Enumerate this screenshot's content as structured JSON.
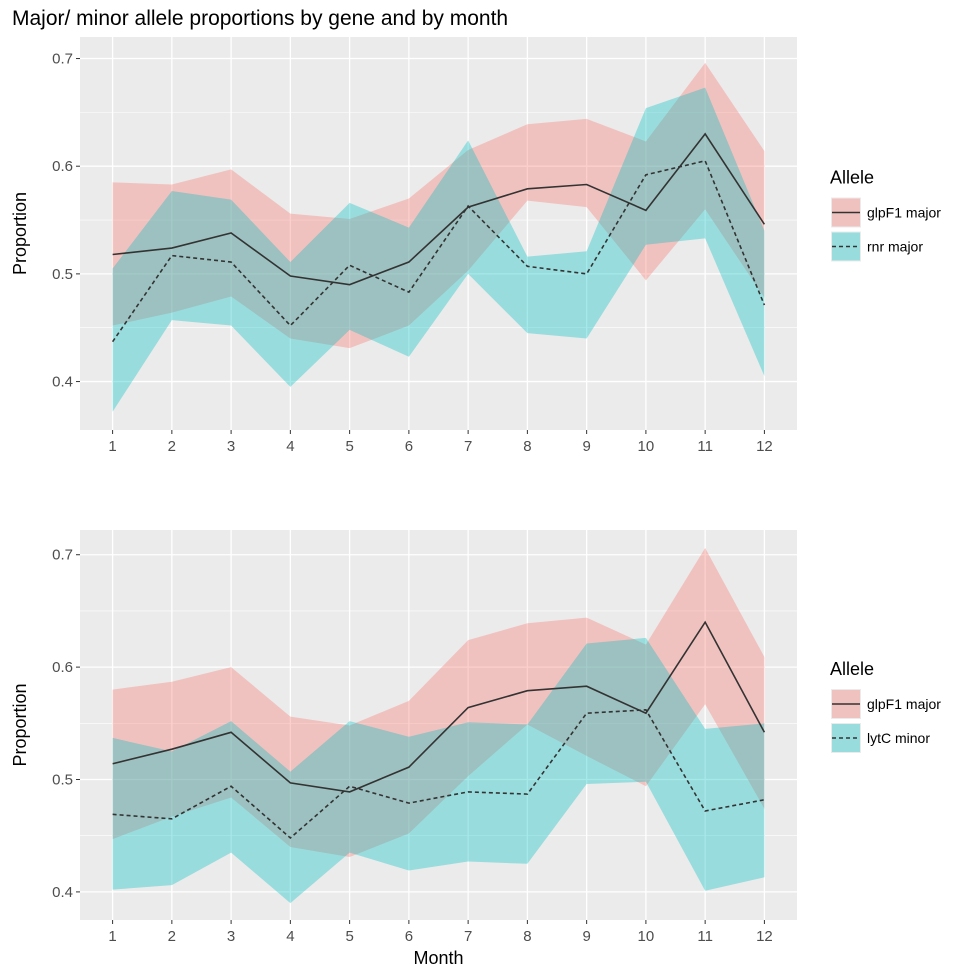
{
  "chart_data": [
    {
      "type": "line",
      "title": "Major/ minor allele proportions by gene and by month",
      "ylabel": "Proportion",
      "x": [
        1,
        2,
        3,
        4,
        5,
        6,
        7,
        8,
        9,
        10,
        11,
        12
      ],
      "xlim": [
        0.45,
        12.55
      ],
      "xticks": [
        1,
        2,
        3,
        4,
        5,
        6,
        7,
        8,
        9,
        10,
        11,
        12
      ],
      "ylim": [
        0.355,
        0.72
      ],
      "yticks": [
        0.4,
        0.5,
        0.6,
        0.7
      ],
      "grid": true,
      "legend_title": "Allele",
      "series": [
        {
          "name": "glpF1 major",
          "color": "#333333",
          "fill": "#f8766d",
          "linestyle": "solid",
          "values": [
            0.518,
            0.524,
            0.538,
            0.498,
            0.49,
            0.511,
            0.562,
            0.579,
            0.583,
            0.559,
            0.63,
            0.546
          ],
          "lower": [
            0.452,
            0.464,
            0.479,
            0.44,
            0.431,
            0.452,
            0.503,
            0.568,
            0.562,
            0.494,
            0.56,
            0.478
          ],
          "upper": [
            0.585,
            0.583,
            0.597,
            0.556,
            0.551,
            0.57,
            0.615,
            0.639,
            0.644,
            0.623,
            0.696,
            0.614
          ]
        },
        {
          "name": "rnr major",
          "color": "#333333",
          "fill": "#00bfc4",
          "linestyle": "dashed",
          "values": [
            0.437,
            0.517,
            0.511,
            0.452,
            0.508,
            0.483,
            0.563,
            0.507,
            0.5,
            0.592,
            0.605,
            0.471
          ],
          "lower": [
            0.372,
            0.457,
            0.452,
            0.395,
            0.448,
            0.423,
            0.5,
            0.445,
            0.44,
            0.527,
            0.533,
            0.405
          ],
          "upper": [
            0.505,
            0.577,
            0.569,
            0.511,
            0.566,
            0.543,
            0.624,
            0.516,
            0.521,
            0.654,
            0.673,
            0.54
          ]
        }
      ]
    },
    {
      "type": "line",
      "ylabel": "Proportion",
      "xlabel": "Month",
      "x": [
        1,
        2,
        3,
        4,
        5,
        6,
        7,
        8,
        9,
        10,
        11,
        12
      ],
      "xlim": [
        0.45,
        12.55
      ],
      "xticks": [
        1,
        2,
        3,
        4,
        5,
        6,
        7,
        8,
        9,
        10,
        11,
        12
      ],
      "ylim": [
        0.375,
        0.722
      ],
      "yticks": [
        0.4,
        0.5,
        0.6,
        0.7
      ],
      "grid": true,
      "legend_title": "Allele",
      "series": [
        {
          "name": "glpF1 major",
          "color": "#333333",
          "fill": "#f8766d",
          "linestyle": "solid",
          "values": [
            0.514,
            0.527,
            0.542,
            0.497,
            0.489,
            0.511,
            0.564,
            0.579,
            0.583,
            0.559,
            0.64,
            0.542
          ],
          "lower": [
            0.447,
            0.467,
            0.484,
            0.44,
            0.431,
            0.452,
            0.503,
            0.549,
            0.521,
            0.494,
            0.567,
            0.474
          ],
          "upper": [
            0.58,
            0.587,
            0.6,
            0.556,
            0.548,
            0.57,
            0.624,
            0.639,
            0.644,
            0.62,
            0.706,
            0.609
          ]
        },
        {
          "name": "lytC minor",
          "color": "#333333",
          "fill": "#00bfc4",
          "linestyle": "dashed",
          "values": [
            0.469,
            0.465,
            0.494,
            0.448,
            0.494,
            0.479,
            0.489,
            0.487,
            0.559,
            0.562,
            0.472,
            0.482
          ],
          "lower": [
            0.402,
            0.406,
            0.435,
            0.39,
            0.435,
            0.419,
            0.427,
            0.425,
            0.496,
            0.498,
            0.401,
            0.413
          ],
          "upper": [
            0.537,
            0.525,
            0.552,
            0.507,
            0.552,
            0.538,
            0.551,
            0.549,
            0.621,
            0.626,
            0.545,
            0.55
          ]
        }
      ]
    }
  ]
}
